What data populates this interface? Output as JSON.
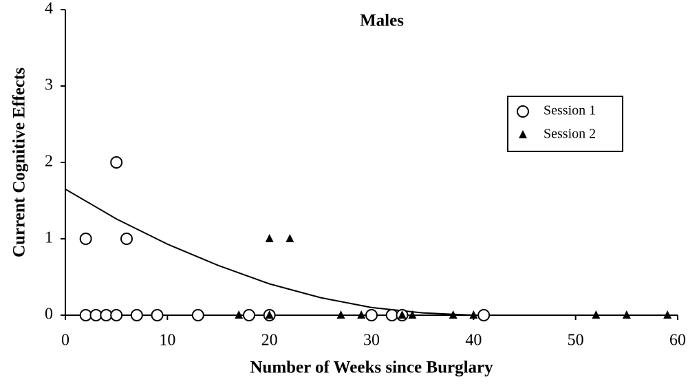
{
  "chart_data": {
    "type": "scatter",
    "title": "Males",
    "xlabel": "Number of Weeks since Burglary",
    "ylabel": "Current Cognitive Effects",
    "xlim": [
      0,
      60
    ],
    "xticks": [
      0,
      10,
      20,
      30,
      40,
      50,
      60
    ],
    "ylim": [
      0,
      4
    ],
    "yticks": [
      0,
      1,
      2,
      3,
      4
    ],
    "legend": "upper right",
    "series": [
      {
        "name": "Session 1",
        "color": "#000000",
        "marker": "circle",
        "x": [
          2,
          5,
          6,
          2,
          3,
          4,
          5,
          7,
          9,
          13,
          18,
          20,
          30,
          32,
          33,
          41
        ],
        "values": [
          1,
          2,
          1,
          0,
          0,
          0,
          0,
          0,
          0,
          0,
          0,
          0,
          0,
          0,
          0,
          0
        ]
      },
      {
        "name": "Session 2",
        "color": "#000000",
        "marker": "triangle",
        "x": [
          20,
          22,
          17,
          20,
          27,
          29,
          33,
          34,
          38,
          40,
          52,
          55,
          59
        ],
        "values": [
          1,
          1,
          0,
          0,
          0,
          0,
          0,
          0,
          0,
          0,
          0,
          0,
          0
        ]
      }
    ],
    "trend": {
      "color": "#000000",
      "x": [
        0,
        5,
        10,
        15,
        20,
        25,
        30,
        35,
        40
      ],
      "values": [
        1.65,
        1.26,
        0.93,
        0.65,
        0.41,
        0.23,
        0.1,
        0.03,
        0
      ]
    }
  }
}
